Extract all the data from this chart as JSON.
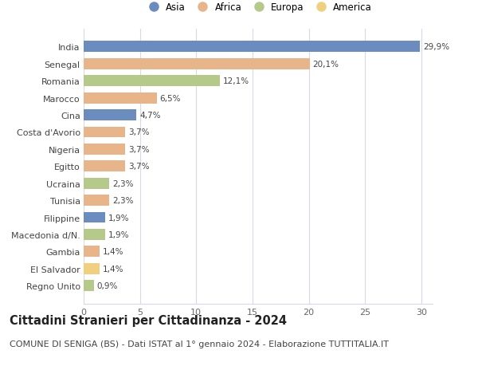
{
  "countries": [
    "India",
    "Senegal",
    "Romania",
    "Marocco",
    "Cina",
    "Costa d'Avorio",
    "Nigeria",
    "Egitto",
    "Ucraina",
    "Tunisia",
    "Filippine",
    "Macedonia d/N.",
    "Gambia",
    "El Salvador",
    "Regno Unito"
  ],
  "values": [
    29.9,
    20.1,
    12.1,
    6.5,
    4.7,
    3.7,
    3.7,
    3.7,
    2.3,
    2.3,
    1.9,
    1.9,
    1.4,
    1.4,
    0.9
  ],
  "labels": [
    "29,9%",
    "20,1%",
    "12,1%",
    "6,5%",
    "4,7%",
    "3,7%",
    "3,7%",
    "3,7%",
    "2,3%",
    "2,3%",
    "1,9%",
    "1,9%",
    "1,4%",
    "1,4%",
    "0,9%"
  ],
  "continents": [
    "Asia",
    "Africa",
    "Europa",
    "Africa",
    "Asia",
    "Africa",
    "Africa",
    "Africa",
    "Europa",
    "Africa",
    "Asia",
    "Europa",
    "Africa",
    "America",
    "Europa"
  ],
  "continent_colors": {
    "Asia": "#6b8cbf",
    "Africa": "#e8b48a",
    "Europa": "#b5c98a",
    "America": "#f0d080"
  },
  "legend_order": [
    "Asia",
    "Africa",
    "Europa",
    "America"
  ],
  "title": "Cittadini Stranieri per Cittadinanza - 2024",
  "subtitle": "COMUNE DI SENIGA (BS) - Dati ISTAT al 1° gennaio 2024 - Elaborazione TUTTITALIA.IT",
  "xlim": [
    0,
    31
  ],
  "xticks": [
    0,
    5,
    10,
    15,
    20,
    25,
    30
  ],
  "background_color": "#ffffff",
  "grid_color": "#d8d8e8",
  "title_fontsize": 10.5,
  "subtitle_fontsize": 8,
  "label_fontsize": 7.5,
  "tick_fontsize": 8,
  "legend_fontsize": 8.5
}
